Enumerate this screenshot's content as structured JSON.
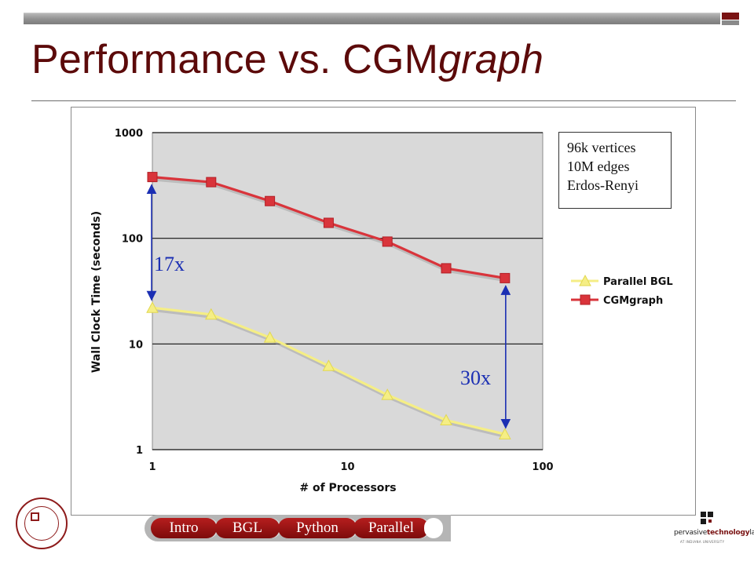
{
  "slide": {
    "title_plain": "Performance vs. CGM",
    "title_italic": "graph"
  },
  "chart_data": {
    "type": "line",
    "title": "",
    "xlabel": "# of Processors",
    "ylabel": "Wall Clock Time (seconds)",
    "x_scale": "log",
    "y_scale": "log",
    "xlim": [
      1,
      100
    ],
    "ylim": [
      1,
      1000
    ],
    "x_ticks": [
      "1",
      "10",
      "100"
    ],
    "y_ticks": [
      "1",
      "10",
      "100",
      "1000"
    ],
    "grid": "horizontal major gridlines on",
    "legend_position": "right",
    "x": [
      1,
      2,
      4,
      8,
      16,
      32,
      64
    ],
    "series": [
      {
        "name": "Parallel BGL",
        "color": "#f5ee85",
        "marker": "triangle",
        "values": [
          22,
          19,
          11.5,
          6.2,
          3.3,
          1.9,
          1.4
        ]
      },
      {
        "name": "CGMgraph",
        "color": "#d9343b",
        "marker": "square",
        "values": [
          380,
          340,
          225,
          140,
          93,
          52,
          42
        ]
      }
    ],
    "annotations": {
      "dataset_lines": [
        "96k vertices",
        "10M edges",
        "Erdos-Renyi"
      ],
      "speedups": [
        {
          "label": "17x",
          "x": 1
        },
        {
          "label": "30x",
          "x": 64
        }
      ]
    }
  },
  "nav": {
    "tabs": [
      "Intro",
      "BGL",
      "Python",
      "Parallel"
    ]
  },
  "footer": {
    "lab_prefix": "pervasive",
    "lab_bold": "technology",
    "lab_suffix": "labs",
    "lab_sub": "AT INDIANA UNIVERSITY"
  },
  "colors": {
    "title": "#5c0a0a",
    "plot_bg": "#d9d9d9",
    "arrow": "#1b2fb3",
    "nav_tab": "#9b1414"
  },
  "icons": {
    "seal": "university-seal-icon",
    "lab_logo": "lab-logo-icon"
  }
}
